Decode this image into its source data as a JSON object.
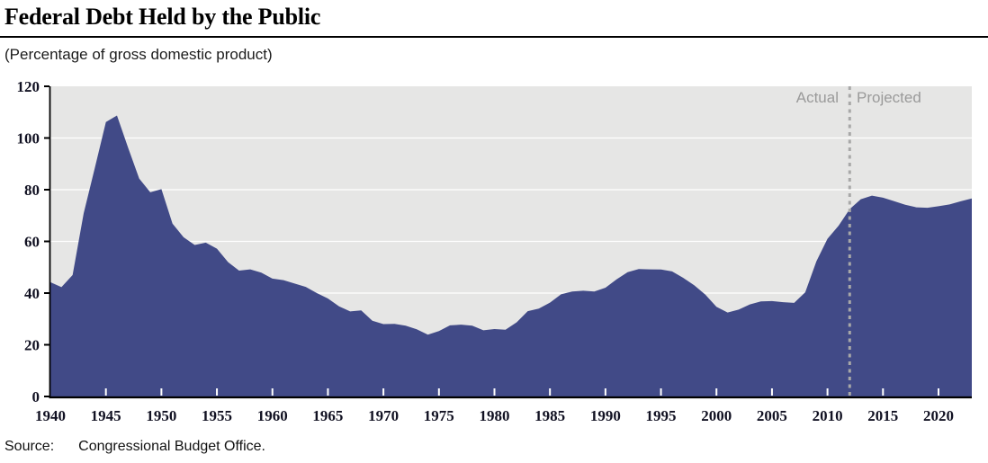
{
  "header": {
    "title": "Federal Debt Held by the Public",
    "subtitle": "(Percentage of gross domestic product)"
  },
  "annotations": {
    "actual": "Actual",
    "projected": "Projected"
  },
  "footer": {
    "source_label": "Source:",
    "source_text": "Congressional Budget Office."
  },
  "colors": {
    "area_fill": "#414a87",
    "plot_background": "#e6e6e5",
    "gridline": "#ffffff",
    "axis": "#000000",
    "divider": "#a8a8a8",
    "annotation_text": "#9a9a9a",
    "tick_label": "#111122",
    "x_tick_mark": "#ffffff"
  },
  "chart_data": {
    "type": "area",
    "title": "Federal Debt Held by the Public",
    "subtitle": "(Percentage of gross domestic product)",
    "xlabel": "",
    "ylabel": "Percentage of gross domestic product",
    "xlim": [
      1940,
      2023
    ],
    "ylim": [
      0,
      120
    ],
    "y_ticks": [
      0,
      20,
      40,
      60,
      80,
      100,
      120
    ],
    "x_ticks": [
      1940,
      1945,
      1950,
      1955,
      1960,
      1965,
      1970,
      1975,
      1980,
      1985,
      1990,
      1995,
      2000,
      2005,
      2010,
      2015,
      2020
    ],
    "grid": "horizontal-white-on-gray",
    "divider_year": 2012,
    "divider_labels": [
      "Actual",
      "Projected"
    ],
    "series": [
      {
        "name": "Federal debt held by the public (% of GDP)",
        "x": [
          1940,
          1941,
          1942,
          1943,
          1944,
          1945,
          1946,
          1947,
          1948,
          1949,
          1950,
          1951,
          1952,
          1953,
          1954,
          1955,
          1956,
          1957,
          1958,
          1959,
          1960,
          1961,
          1962,
          1963,
          1964,
          1965,
          1966,
          1967,
          1968,
          1969,
          1970,
          1971,
          1972,
          1973,
          1974,
          1975,
          1976,
          1977,
          1978,
          1979,
          1980,
          1981,
          1982,
          1983,
          1984,
          1985,
          1986,
          1987,
          1988,
          1989,
          1990,
          1991,
          1992,
          1993,
          1994,
          1995,
          1996,
          1997,
          1998,
          1999,
          2000,
          2001,
          2002,
          2003,
          2004,
          2005,
          2006,
          2007,
          2008,
          2009,
          2010,
          2011,
          2012,
          2013,
          2014,
          2015,
          2016,
          2017,
          2018,
          2019,
          2020,
          2021,
          2022,
          2023
        ],
        "values": [
          44.2,
          42.3,
          47.0,
          70.9,
          88.3,
          106.2,
          108.7,
          96.2,
          84.3,
          79.0,
          80.2,
          66.9,
          61.6,
          58.6,
          59.5,
          57.2,
          52.0,
          48.7,
          49.2,
          47.9,
          45.6,
          45.0,
          43.7,
          42.4,
          40.0,
          37.9,
          34.9,
          32.9,
          33.3,
          29.3,
          28.0,
          28.1,
          27.4,
          26.0,
          23.9,
          25.3,
          27.5,
          27.8,
          27.4,
          25.6,
          26.1,
          25.8,
          28.7,
          33.0,
          34.0,
          36.3,
          39.5,
          40.6,
          40.9,
          40.6,
          42.1,
          45.3,
          48.1,
          49.3,
          49.2,
          49.1,
          48.4,
          45.9,
          43.0,
          39.4,
          34.7,
          32.5,
          33.6,
          35.6,
          36.8,
          36.9,
          36.5,
          36.2,
          40.3,
          52.3,
          61.0,
          66.1,
          72.5,
          76.3,
          77.7,
          76.9,
          75.6,
          74.2,
          73.2,
          73.0,
          73.6,
          74.3,
          75.5,
          76.6
        ]
      }
    ]
  }
}
